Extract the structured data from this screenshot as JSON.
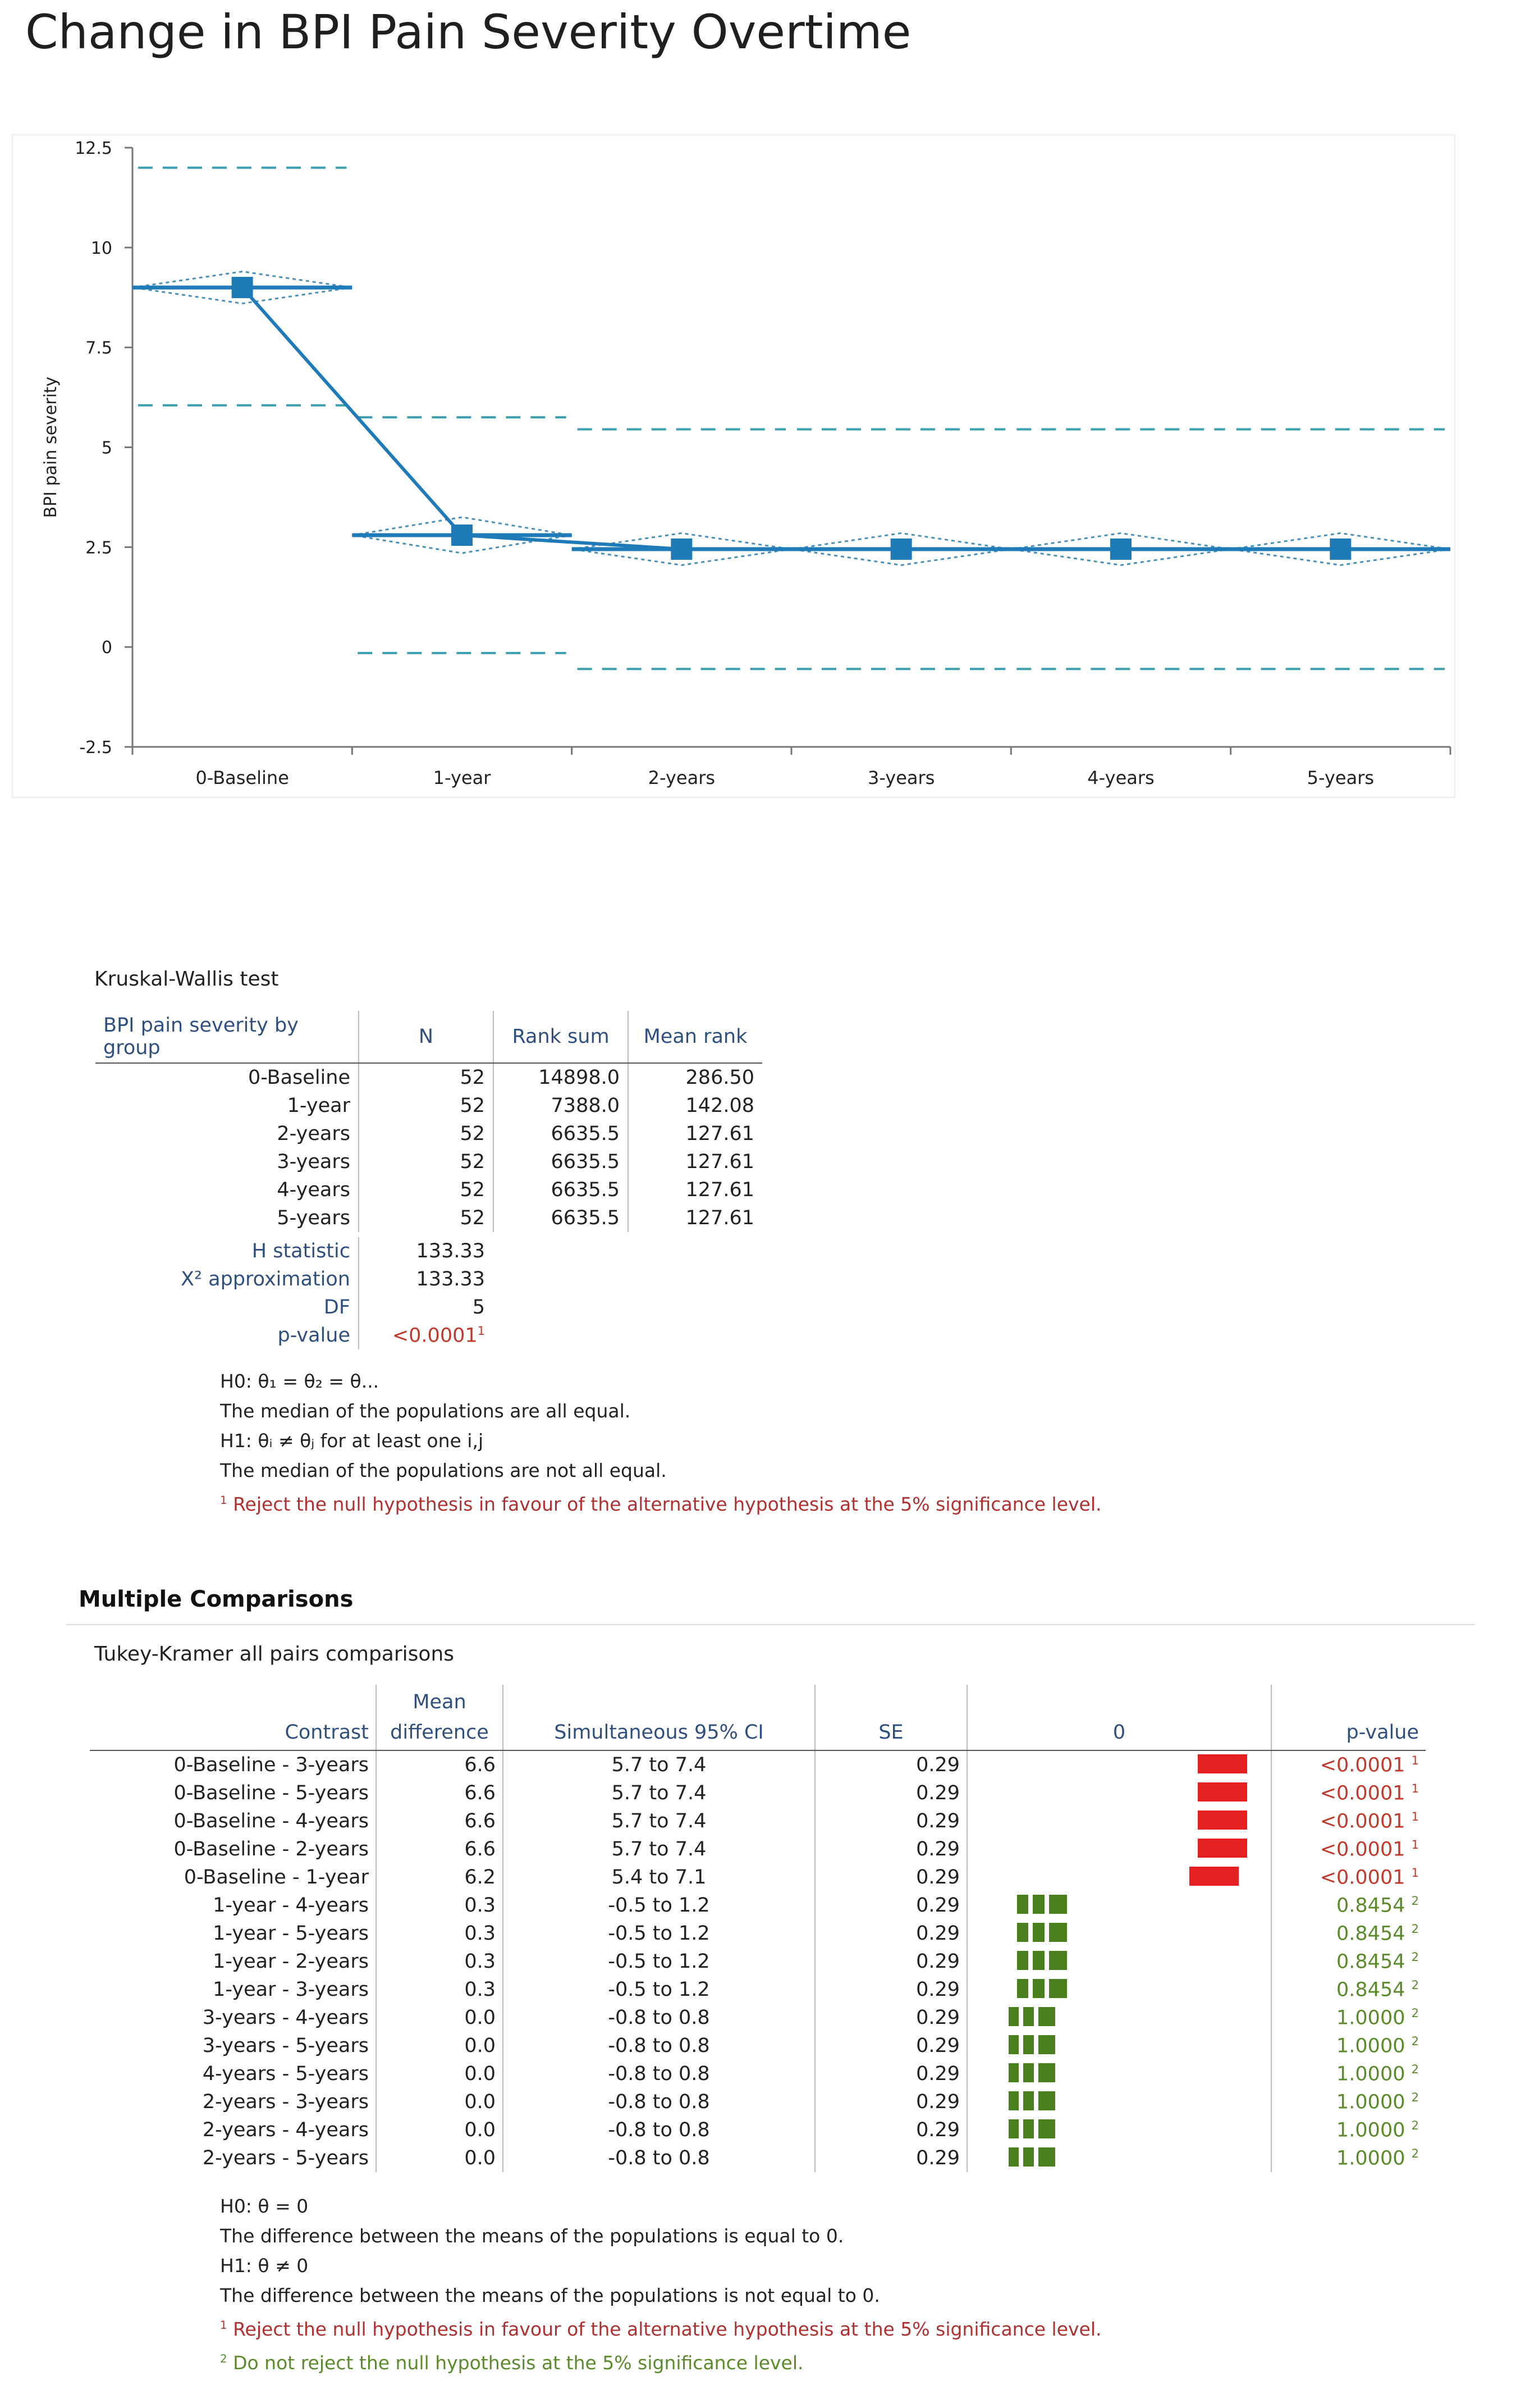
{
  "page": {
    "title": "Change in BPI Pain Severity Overtime"
  },
  "chart_data": {
    "type": "line",
    "categories": [
      "0-Baseline",
      "1-year",
      "2-years",
      "3-years",
      "4-years",
      "5-years"
    ],
    "series": [
      {
        "values": [
          9.0,
          2.8,
          2.45,
          2.45,
          2.45,
          2.45
        ]
      }
    ],
    "ci_lower": [
      8.6,
      2.35,
      2.05,
      2.05,
      2.05,
      2.05
    ],
    "ci_upper": [
      9.4,
      3.25,
      2.85,
      2.85,
      2.85,
      2.85
    ],
    "upper_limit": [
      12.0,
      5.75,
      5.45,
      5.45,
      5.45,
      5.45
    ],
    "lower_limit": [
      6.05,
      -0.15,
      -0.55,
      -0.55,
      -0.55,
      -0.55
    ],
    "yticks": [
      "12.5",
      "10",
      "7.5",
      "5",
      "2.5",
      "0",
      "-2.5"
    ],
    "ylabel": "BPI pain severity",
    "xlabel": "",
    "ylim": [
      -2.5,
      12.5
    ],
    "grid": false,
    "colors": {
      "line": "#1f7ab8",
      "dashed": "#3aa0b0"
    }
  },
  "kruskal": {
    "title": "Kruskal-Wallis test",
    "headers": [
      "BPI pain severity by group",
      "N",
      "Rank sum",
      "Mean rank"
    ],
    "rows": [
      [
        "0-Baseline",
        "52",
        "14898.0",
        "286.50"
      ],
      [
        "1-year",
        "52",
        "7388.0",
        "142.08"
      ],
      [
        "2-years",
        "52",
        "6635.5",
        "127.61"
      ],
      [
        "3-years",
        "52",
        "6635.5",
        "127.61"
      ],
      [
        "4-years",
        "52",
        "6635.5",
        "127.61"
      ],
      [
        "5-years",
        "52",
        "6635.5",
        "127.61"
      ]
    ],
    "stats": [
      {
        "label": "H statistic",
        "value": "133.33"
      },
      {
        "label": "X² approximation",
        "value": "133.33"
      },
      {
        "label": "DF",
        "value": "5"
      },
      {
        "label": "p-value",
        "value": "<0.0001",
        "sup": "1"
      }
    ],
    "notes": [
      "H0: θ₁ = θ₂ = θ...",
      "The median of the populations are all equal.",
      "H1: θᵢ ≠ θⱼ for at least one i,j",
      "The median of the populations are not all equal."
    ],
    "footnote_red": "Reject the null hypothesis in favour of the alternative hypothesis at the 5% significance level."
  },
  "multiple": {
    "title": "Multiple Comparisons",
    "subtitle": "Tukey-Kramer all pairs comparisons",
    "headers": {
      "contrast": "Contrast",
      "md_line1": "Mean",
      "md_line2": "difference",
      "ci": "Simultaneous 95% CI",
      "se": "SE",
      "plot": "0",
      "pv": "p-value"
    },
    "rows": [
      {
        "contrast": "0-Baseline - 3-years",
        "md": "6.6",
        "ci": "5.7 to 7.4",
        "se": "0.29",
        "pv": "<0.0001",
        "sup": "1",
        "sig": true,
        "lo": 5.7,
        "hi": 7.4
      },
      {
        "contrast": "0-Baseline - 5-years",
        "md": "6.6",
        "ci": "5.7 to 7.4",
        "se": "0.29",
        "pv": "<0.0001",
        "sup": "1",
        "sig": true,
        "lo": 5.7,
        "hi": 7.4
      },
      {
        "contrast": "0-Baseline - 4-years",
        "md": "6.6",
        "ci": "5.7 to 7.4",
        "se": "0.29",
        "pv": "<0.0001",
        "sup": "1",
        "sig": true,
        "lo": 5.7,
        "hi": 7.4
      },
      {
        "contrast": "0-Baseline - 2-years",
        "md": "6.6",
        "ci": "5.7 to 7.4",
        "se": "0.29",
        "pv": "<0.0001",
        "sup": "1",
        "sig": true,
        "lo": 5.7,
        "hi": 7.4
      },
      {
        "contrast": "0-Baseline - 1-year",
        "md": "6.2",
        "ci": "5.4 to 7.1",
        "se": "0.29",
        "pv": "<0.0001",
        "sup": "1",
        "sig": true,
        "lo": 5.4,
        "hi": 7.1
      },
      {
        "contrast": "1-year - 4-years",
        "md": "0.3",
        "ci": "-0.5 to 1.2",
        "se": "0.29",
        "pv": "0.8454",
        "sup": "2",
        "sig": false,
        "lo": -0.5,
        "hi": 1.2
      },
      {
        "contrast": "1-year - 5-years",
        "md": "0.3",
        "ci": "-0.5 to 1.2",
        "se": "0.29",
        "pv": "0.8454",
        "sup": "2",
        "sig": false,
        "lo": -0.5,
        "hi": 1.2
      },
      {
        "contrast": "1-year - 2-years",
        "md": "0.3",
        "ci": "-0.5 to 1.2",
        "se": "0.29",
        "pv": "0.8454",
        "sup": "2",
        "sig": false,
        "lo": -0.5,
        "hi": 1.2
      },
      {
        "contrast": "1-year - 3-years",
        "md": "0.3",
        "ci": "-0.5 to 1.2",
        "se": "0.29",
        "pv": "0.8454",
        "sup": "2",
        "sig": false,
        "lo": -0.5,
        "hi": 1.2
      },
      {
        "contrast": "3-years - 4-years",
        "md": "0.0",
        "ci": "-0.8 to 0.8",
        "se": "0.29",
        "pv": "1.0000",
        "sup": "2",
        "sig": false,
        "lo": -0.8,
        "hi": 0.8
      },
      {
        "contrast": "3-years - 5-years",
        "md": "0.0",
        "ci": "-0.8 to 0.8",
        "se": "0.29",
        "pv": "1.0000",
        "sup": "2",
        "sig": false,
        "lo": -0.8,
        "hi": 0.8
      },
      {
        "contrast": "4-years - 5-years",
        "md": "0.0",
        "ci": "-0.8 to 0.8",
        "se": "0.29",
        "pv": "1.0000",
        "sup": "2",
        "sig": false,
        "lo": -0.8,
        "hi": 0.8
      },
      {
        "contrast": "2-years - 3-years",
        "md": "0.0",
        "ci": "-0.8 to 0.8",
        "se": "0.29",
        "pv": "1.0000",
        "sup": "2",
        "sig": false,
        "lo": -0.8,
        "hi": 0.8
      },
      {
        "contrast": "2-years - 4-years",
        "md": "0.0",
        "ci": "-0.8 to 0.8",
        "se": "0.29",
        "pv": "1.0000",
        "sup": "2",
        "sig": false,
        "lo": -0.8,
        "hi": 0.8
      },
      {
        "contrast": "2-years - 5-years",
        "md": "0.0",
        "ci": "-0.8 to 0.8",
        "se": "0.29",
        "pv": "1.0000",
        "sup": "2",
        "sig": false,
        "lo": -0.8,
        "hi": 0.8
      }
    ],
    "notes": [
      "H0: θ = 0",
      "The difference between the means of the populations is equal to 0.",
      "H1: θ ≠ 0",
      "The difference between the means of the populations is not equal to 0."
    ],
    "footnote_red": "Reject the null hypothesis in favour of the alternative hypothesis at the 5% significance level.",
    "footnote_green": "Do not reject the null hypothesis at the 5% significance level.",
    "colors": {
      "sig": "#e52020",
      "nonsig": "#4a7f1e",
      "sig_text": "#c0392b",
      "nonsig_text": "#5a8a2a"
    }
  }
}
